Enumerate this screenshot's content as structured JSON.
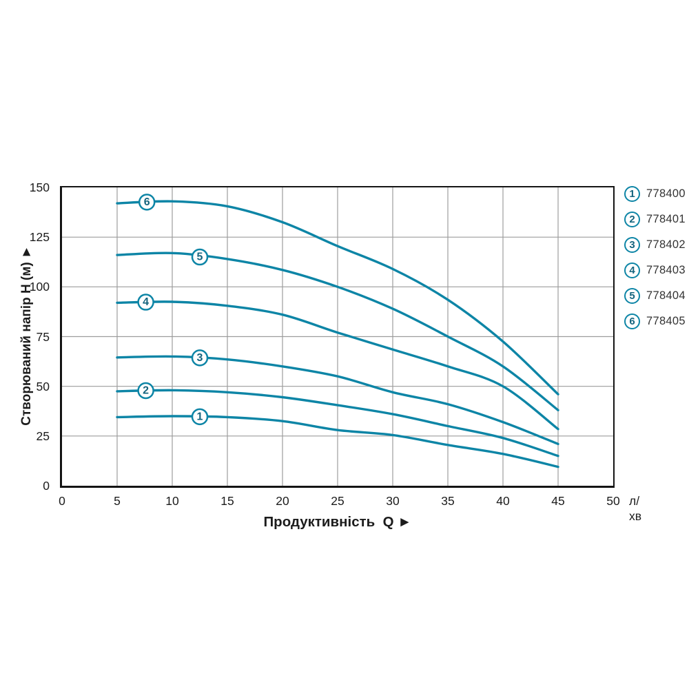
{
  "chart_data": {
    "type": "line",
    "title": "",
    "xlabel": "Продуктивність  Q ►",
    "ylabel": "Створюваний напір H (м) ►",
    "x_unit": "л/хв",
    "xlim": [
      0,
      50
    ],
    "ylim": [
      0,
      150
    ],
    "x_ticks": [
      0,
      5,
      10,
      15,
      20,
      25,
      30,
      35,
      40,
      45,
      50
    ],
    "y_ticks": [
      0,
      25,
      50,
      75,
      100,
      125,
      150
    ],
    "grid": true,
    "legend_position": "right-outside",
    "colors": {
      "curve": "#0d85a6",
      "gridline": "#9c9c9c",
      "axis_border": "#141414",
      "text": "#1c1c1c",
      "legend_code_text": "#333333"
    },
    "x": [
      5,
      10,
      15,
      20,
      25,
      30,
      35,
      40,
      45
    ],
    "series": [
      {
        "name": "1",
        "code": "778400",
        "values": [
          34.5,
          35,
          34.5,
          32.5,
          28,
          25.5,
          20.5,
          16,
          9.5
        ],
        "marker": {
          "x": 12.5,
          "y": 34.7
        }
      },
      {
        "name": "2",
        "code": "778401",
        "values": [
          47.5,
          48,
          47,
          44.5,
          40.5,
          36,
          30,
          24,
          15
        ],
        "marker": {
          "x": 7.6,
          "y": 47.8
        }
      },
      {
        "name": "3",
        "code": "778402",
        "values": [
          64.5,
          65,
          63.5,
          60,
          55,
          47,
          41,
          32,
          21
        ],
        "marker": {
          "x": 12.5,
          "y": 64.3
        }
      },
      {
        "name": "4",
        "code": "778403",
        "values": [
          92,
          92.5,
          90.5,
          86,
          77,
          68.5,
          60,
          50,
          28.5
        ],
        "marker": {
          "x": 7.6,
          "y": 92.3
        }
      },
      {
        "name": "5",
        "code": "778404",
        "values": [
          116,
          117,
          114,
          108.5,
          100,
          89,
          75,
          60,
          38
        ],
        "marker": {
          "x": 12.5,
          "y": 115
        }
      },
      {
        "name": "6",
        "code": "778405",
        "values": [
          142,
          143,
          140.5,
          132.5,
          120.5,
          109,
          93.5,
          72.5,
          46
        ],
        "marker": {
          "x": 7.7,
          "y": 142.6
        }
      }
    ],
    "legend": [
      {
        "num": "1",
        "label": "778400"
      },
      {
        "num": "2",
        "label": "778401"
      },
      {
        "num": "3",
        "label": "778402"
      },
      {
        "num": "4",
        "label": "778403"
      },
      {
        "num": "5",
        "label": "778404"
      },
      {
        "num": "6",
        "label": "778405"
      }
    ]
  }
}
